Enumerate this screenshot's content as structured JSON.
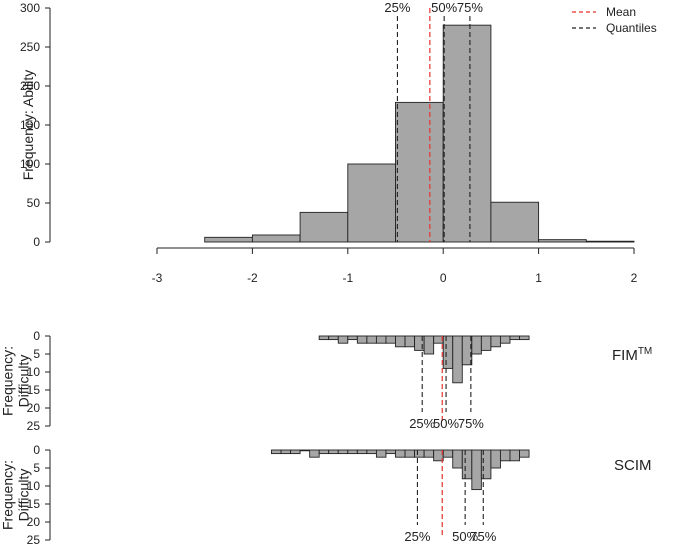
{
  "colors": {
    "bar": "#a6a6a6",
    "mean": "#e8322c",
    "quantile": "#222222",
    "axis": "#222222"
  },
  "legend": {
    "mean_label": "Mean",
    "quantiles_label": "Quantiles",
    "position": "top-right"
  },
  "x_ticks": [
    "-3",
    "-2",
    "-1",
    "0",
    "1",
    "2"
  ],
  "chart_data": [
    {
      "type": "bar",
      "name": "ability",
      "ylabel": "Frequency: Ability",
      "xlim": [
        -3,
        2
      ],
      "ylim": [
        0,
        300
      ],
      "y_ticks": [
        "0",
        "50",
        "100",
        "150",
        "200",
        "250",
        "300"
      ],
      "bins": [
        {
          "x0": -2.5,
          "x1": -2.0,
          "count": 6
        },
        {
          "x0": -2.0,
          "x1": -1.5,
          "count": 9
        },
        {
          "x0": -1.5,
          "x1": -1.0,
          "count": 38
        },
        {
          "x0": -1.0,
          "x1": -0.5,
          "count": 100
        },
        {
          "x0": -0.5,
          "x1": 0.0,
          "count": 179
        },
        {
          "x0": 0.0,
          "x1": 0.5,
          "count": 278
        },
        {
          "x0": 0.5,
          "x1": 1.0,
          "count": 51
        },
        {
          "x0": 1.0,
          "x1": 1.5,
          "count": 3
        },
        {
          "x0": 1.5,
          "x1": 2.0,
          "count": 1
        }
      ],
      "mean": -0.14,
      "quantiles": [
        {
          "label": "25%",
          "value": -0.48
        },
        {
          "label": "50%",
          "value": 0.01
        },
        {
          "label": "75%",
          "value": 0.28
        }
      ]
    },
    {
      "type": "bar",
      "name": "fim",
      "label": "FIM",
      "label_superscript": "TM",
      "ylabel": "Frequency:\nDifficulty",
      "xlim": [
        -3,
        2
      ],
      "ylim": [
        0,
        25
      ],
      "y_ticks": [
        "0",
        "5",
        "10",
        "15",
        "20",
        "25"
      ],
      "bin_width": 0.1,
      "bins": [
        {
          "x0": -1.3,
          "count": 1
        },
        {
          "x0": -1.2,
          "count": 1
        },
        {
          "x0": -1.1,
          "count": 2
        },
        {
          "x0": -1.0,
          "count": 1
        },
        {
          "x0": -0.9,
          "count": 2
        },
        {
          "x0": -0.8,
          "count": 2
        },
        {
          "x0": -0.7,
          "count": 2
        },
        {
          "x0": -0.6,
          "count": 2
        },
        {
          "x0": -0.5,
          "count": 3
        },
        {
          "x0": -0.4,
          "count": 3
        },
        {
          "x0": -0.3,
          "count": 4
        },
        {
          "x0": -0.2,
          "count": 5
        },
        {
          "x0": -0.1,
          "count": 2
        },
        {
          "x0": 0.0,
          "count": 9
        },
        {
          "x0": 0.1,
          "count": 13
        },
        {
          "x0": 0.2,
          "count": 8
        },
        {
          "x0": 0.3,
          "count": 5
        },
        {
          "x0": 0.4,
          "count": 4
        },
        {
          "x0": 0.5,
          "count": 3
        },
        {
          "x0": 0.6,
          "count": 2
        },
        {
          "x0": 0.7,
          "count": 1
        },
        {
          "x0": 0.8,
          "count": 1
        }
      ],
      "mean": -0.01,
      "quantiles": [
        {
          "label": "25%",
          "value": -0.22
        },
        {
          "label": "50%",
          "value": 0.03
        },
        {
          "label": "75%",
          "value": 0.29
        }
      ]
    },
    {
      "type": "bar",
      "name": "scim",
      "label": "SCIM",
      "ylabel": "Frequency:\nDifficulty",
      "xlim": [
        -3,
        2
      ],
      "ylim": [
        0,
        25
      ],
      "y_ticks": [
        "0",
        "5",
        "10",
        "15",
        "20",
        "25"
      ],
      "bin_width": 0.1,
      "bins": [
        {
          "x0": -1.8,
          "count": 1
        },
        {
          "x0": -1.7,
          "count": 1
        },
        {
          "x0": -1.6,
          "count": 1
        },
        {
          "x0": -1.5,
          "count": 0
        },
        {
          "x0": -1.4,
          "count": 2
        },
        {
          "x0": -1.3,
          "count": 1
        },
        {
          "x0": -1.2,
          "count": 1
        },
        {
          "x0": -1.1,
          "count": 1
        },
        {
          "x0": -1.0,
          "count": 1
        },
        {
          "x0": -0.9,
          "count": 1
        },
        {
          "x0": -0.8,
          "count": 1
        },
        {
          "x0": -0.7,
          "count": 2
        },
        {
          "x0": -0.6,
          "count": 1
        },
        {
          "x0": -0.5,
          "count": 2
        },
        {
          "x0": -0.4,
          "count": 2
        },
        {
          "x0": -0.3,
          "count": 2
        },
        {
          "x0": -0.2,
          "count": 2
        },
        {
          "x0": -0.1,
          "count": 3
        },
        {
          "x0": 0.0,
          "count": 2
        },
        {
          "x0": 0.1,
          "count": 5
        },
        {
          "x0": 0.2,
          "count": 8
        },
        {
          "x0": 0.3,
          "count": 11
        },
        {
          "x0": 0.4,
          "count": 8
        },
        {
          "x0": 0.5,
          "count": 5
        },
        {
          "x0": 0.6,
          "count": 3
        },
        {
          "x0": 0.7,
          "count": 3
        },
        {
          "x0": 0.8,
          "count": 2
        }
      ],
      "mean": -0.01,
      "quantiles": [
        {
          "label": "25%",
          "value": -0.27
        },
        {
          "label": "50%",
          "value": 0.23
        },
        {
          "label": "75%",
          "value": 0.42
        }
      ]
    }
  ]
}
